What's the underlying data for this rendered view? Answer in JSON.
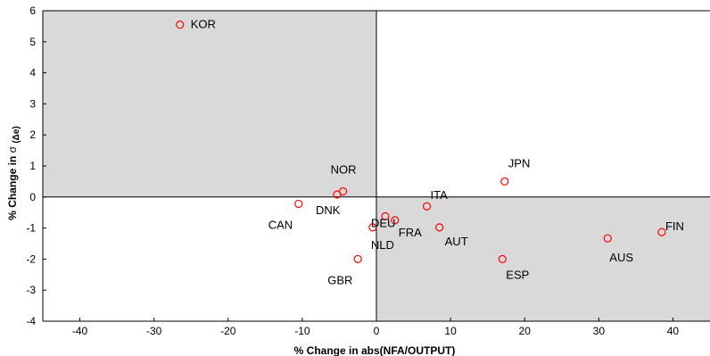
{
  "chart_data": {
    "type": "scatter",
    "title": "",
    "xlabel": "% Change in abs(NFA/OUTPUT)",
    "ylabel_parts": {
      "before": "% Change in ",
      "sigma": "σ",
      "delta_e": "(Δe)"
    },
    "xlim": [
      -45,
      45
    ],
    "ylim": [
      -4,
      6
    ],
    "xticks": [
      "-40",
      "-30",
      "-20",
      "-10",
      "0",
      "10",
      "20",
      "30",
      "40"
    ],
    "xtick_values": [
      -40,
      -30,
      -20,
      -10,
      0,
      10,
      20,
      30,
      40
    ],
    "yticks": [
      "-4",
      "-3",
      "-2",
      "-1",
      "0",
      "1",
      "2",
      "3",
      "4",
      "5",
      "6"
    ],
    "ytick_values": [
      -4,
      -3,
      -2,
      -1,
      0,
      1,
      2,
      3,
      4,
      5,
      6
    ],
    "grid": false,
    "shaded_quadrants": [
      "top-left",
      "bottom-right"
    ],
    "colors": {
      "marker": "#ff0000",
      "shade": "#d9d9d9",
      "axis": "#000000"
    },
    "points": [
      {
        "label": "KOR",
        "x": -26.5,
        "y": 5.55
      },
      {
        "label": "NOR",
        "x": -4.5,
        "y": 0.18
      },
      {
        "label": "DNK",
        "x": -5.3,
        "y": 0.08
      },
      {
        "label": "CAN",
        "x": -10.5,
        "y": -0.22
      },
      {
        "label": "DEU",
        "x": 1.2,
        "y": -0.62
      },
      {
        "label": "FRA",
        "x": 2.5,
        "y": -0.75
      },
      {
        "label": "NLD",
        "x": -0.5,
        "y": -0.98
      },
      {
        "label": "GBR",
        "x": -2.5,
        "y": -2.0
      },
      {
        "label": "ITA",
        "x": 6.8,
        "y": -0.3
      },
      {
        "label": "AUT",
        "x": 8.5,
        "y": -0.98
      },
      {
        "label": "JPN",
        "x": 17.3,
        "y": 0.5
      },
      {
        "label": "ESP",
        "x": 17.0,
        "y": -2.0
      },
      {
        "label": "AUS",
        "x": 31.2,
        "y": -1.33
      },
      {
        "label": "FIN",
        "x": 38.5,
        "y": -1.13
      }
    ]
  }
}
